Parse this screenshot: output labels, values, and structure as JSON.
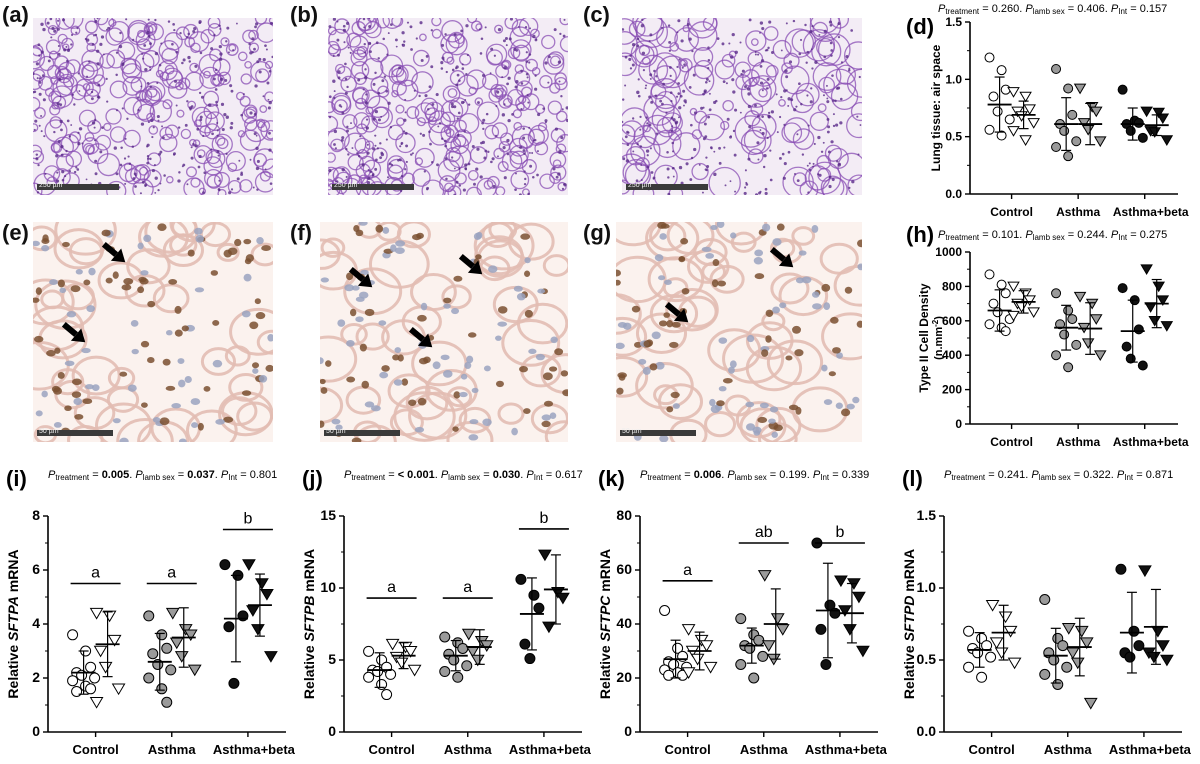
{
  "micrographs": {
    "he": [
      {
        "label": "(a)",
        "scale_text": "250 µm"
      },
      {
        "label": "(b)",
        "scale_text": "250 µm"
      },
      {
        "label": "(c)",
        "scale_text": "250 µm"
      }
    ],
    "ihc": [
      {
        "label": "(e)",
        "scale_text": "50 µm"
      },
      {
        "label": "(f)",
        "scale_text": "50 µm"
      },
      {
        "label": "(g)",
        "scale_text": "50 µm"
      }
    ]
  },
  "colors": {
    "he_stain": "#8a4fb4",
    "he_bg": "#f3ecf5",
    "ihc_bg": "#fbf2ee",
    "ihc_tissue": "#e2bcb3",
    "ihc_nuc": "#7a5030",
    "control": "#ffffff",
    "asthma": "#999999",
    "asthma_beta": "#111111"
  },
  "chart_data": [
    {
      "id": "d",
      "label": "(d)",
      "type": "scatter",
      "stats": {
        "a": "0.260",
        "b": "0.406",
        "c": "0.157",
        "bold": []
      },
      "ylabel": "Lung tissue: air space",
      "ylim": [
        0,
        1.5
      ],
      "yticks": [
        "0.0",
        "0.5",
        "1.0",
        "1.5"
      ],
      "categories": [
        "Control",
        "Asthma",
        "Asthma+beta"
      ],
      "groups": [
        {
          "cat": 0,
          "shape": "circle",
          "fill": "white",
          "mean": 0.78,
          "sd": 0.24,
          "points": [
            1.19,
            1.08,
            0.91,
            0.85,
            0.72,
            0.65,
            0.56,
            0.51
          ]
        },
        {
          "cat": 0,
          "shape": "triangle",
          "fill": "white",
          "mean": 0.69,
          "sd": 0.12,
          "points": [
            0.89,
            0.85,
            0.74,
            0.72,
            0.68,
            0.62,
            0.55,
            0.47
          ]
        },
        {
          "cat": 1,
          "shape": "circle",
          "fill": "grey",
          "mean": 0.61,
          "sd": 0.23,
          "points": [
            1.09,
            0.92,
            0.69,
            0.61,
            0.55,
            0.46,
            0.41,
            0.33
          ]
        },
        {
          "cat": 1,
          "shape": "triangle",
          "fill": "grey",
          "mean": 0.61,
          "sd": 0.18,
          "points": [
            0.92,
            0.76,
            0.72,
            0.62,
            0.56,
            0.46
          ]
        },
        {
          "cat": 2,
          "shape": "circle",
          "fill": "black",
          "mean": 0.61,
          "sd": 0.14,
          "points": [
            0.91,
            0.64,
            0.62,
            0.61,
            0.55,
            0.49
          ]
        },
        {
          "cat": 2,
          "shape": "triangle",
          "fill": "black",
          "mean": 0.6,
          "sd": 0.09,
          "points": [
            0.72,
            0.71,
            0.66,
            0.55,
            0.54,
            0.47
          ]
        }
      ],
      "sig": []
    },
    {
      "id": "h",
      "label": "(h)",
      "type": "scatter",
      "stats": {
        "a": "0.101",
        "b": "0.244",
        "c": "0.275",
        "bold": []
      },
      "ylabel": "Type II Cell Density",
      "ylabel2": "(n.mm-2)",
      "ylim": [
        0,
        1000
      ],
      "yticks": [
        "0",
        "200",
        "400",
        "600",
        "800",
        "1000"
      ],
      "categories": [
        "Control",
        "Asthma",
        "Asthma+beta"
      ],
      "groups": [
        {
          "cat": 0,
          "shape": "circle",
          "fill": "white",
          "mean": 660,
          "sd": 120,
          "points": [
            870,
            810,
            760,
            700,
            650,
            610,
            580,
            560,
            540
          ]
        },
        {
          "cat": 0,
          "shape": "triangle",
          "fill": "white",
          "mean": 710,
          "sd": 65,
          "points": [
            800,
            760,
            720,
            700,
            680,
            650,
            630
          ]
        },
        {
          "cat": 1,
          "shape": "circle",
          "fill": "grey",
          "mean": 560,
          "sd": 130,
          "points": [
            760,
            660,
            610,
            580,
            520,
            460,
            400,
            330
          ]
        },
        {
          "cat": 1,
          "shape": "triangle",
          "fill": "grey",
          "mean": 555,
          "sd": 150,
          "points": [
            740,
            700,
            610,
            560,
            470,
            400
          ]
        },
        {
          "cat": 2,
          "shape": "circle",
          "fill": "black",
          "mean": 540,
          "sd": 180,
          "points": [
            790,
            720,
            550,
            450,
            380,
            340
          ]
        },
        {
          "cat": 2,
          "shape": "triangle",
          "fill": "black",
          "mean": 700,
          "sd": 140,
          "points": [
            900,
            800,
            720,
            680,
            600,
            570
          ]
        }
      ],
      "sig": []
    },
    {
      "id": "i",
      "label": "(i)",
      "type": "scatter",
      "stats": {
        "a": "0.005",
        "b": "0.037",
        "c": "0.801",
        "bold": [
          "a",
          "b"
        ]
      },
      "ylabel": "Relative SFTPA mRNA",
      "ylim": [
        0,
        8
      ],
      "yticks": [
        "0",
        "2",
        "4",
        "6",
        "8"
      ],
      "categories": [
        "Control",
        "Asthma",
        "Asthma+beta"
      ],
      "groups": [
        {
          "cat": 0,
          "shape": "circle",
          "fill": "white",
          "mean": 2.2,
          "sd": 0.8,
          "points": [
            3.6,
            3.0,
            2.4,
            2.2,
            2.1,
            2.0,
            1.9,
            1.7,
            1.6,
            1.5
          ]
        },
        {
          "cat": 0,
          "shape": "triangle",
          "fill": "white",
          "mean": 3.25,
          "sd": 1.2,
          "points": [
            4.4,
            4.3,
            3.4,
            3.0,
            2.4,
            1.6,
            1.1
          ]
        },
        {
          "cat": 1,
          "shape": "circle",
          "fill": "grey",
          "mean": 2.6,
          "sd": 1.05,
          "points": [
            4.3,
            3.6,
            3.1,
            2.9,
            2.5,
            2.3,
            2.0,
            1.6,
            1.1
          ]
        },
        {
          "cat": 1,
          "shape": "triangle",
          "fill": "grey",
          "mean": 3.5,
          "sd": 1.1,
          "points": [
            4.4,
            3.8,
            3.6,
            3.3,
            2.8,
            2.3
          ]
        },
        {
          "cat": 2,
          "shape": "circle",
          "fill": "black",
          "mean": 4.2,
          "sd": 1.6,
          "points": [
            6.2,
            5.8,
            4.3,
            3.9,
            1.8
          ]
        },
        {
          "cat": 2,
          "shape": "triangle",
          "fill": "black",
          "mean": 4.7,
          "sd": 1.15,
          "points": [
            6.2,
            5.5,
            5.1,
            4.5,
            3.8,
            2.8
          ]
        }
      ],
      "sig": [
        {
          "from": 0,
          "to": 0,
          "y": 5.5,
          "text": "a"
        },
        {
          "from": 1,
          "to": 1,
          "y": 5.5,
          "text": "a"
        },
        {
          "from": 2,
          "to": 2,
          "y": 7.5,
          "text": "b"
        }
      ]
    },
    {
      "id": "j",
      "label": "(j)",
      "type": "scatter",
      "stats": {
        "a": "< 0.001",
        "b": "0.030",
        "c": "0.617",
        "bold": [
          "a",
          "b"
        ]
      },
      "ylabel": "Relative SFTPB mRNA",
      "ylim": [
        0,
        15
      ],
      "yticks": [
        "0",
        "5",
        "10",
        "15"
      ],
      "categories": [
        "Control",
        "Asthma",
        "Asthma+beta"
      ],
      "groups": [
        {
          "cat": 0,
          "shape": "circle",
          "fill": "white",
          "mean": 4.3,
          "sd": 1.2,
          "points": [
            5.6,
            5.0,
            4.5,
            4.3,
            4.2,
            4.0,
            3.8,
            3.3,
            2.6
          ]
        },
        {
          "cat": 0,
          "shape": "triangle",
          "fill": "white",
          "mean": 5.3,
          "sd": 0.9,
          "points": [
            6.1,
            5.9,
            5.6,
            5.2,
            4.8,
            4.3
          ]
        },
        {
          "cat": 1,
          "shape": "circle",
          "fill": "grey",
          "mean": 5.3,
          "sd": 1.05,
          "points": [
            6.6,
            6.2,
            5.8,
            5.4,
            5.0,
            4.6,
            4.2,
            3.8
          ]
        },
        {
          "cat": 1,
          "shape": "triangle",
          "fill": "grey",
          "mean": 5.9,
          "sd": 1.2,
          "points": [
            6.8,
            6.3,
            6.0,
            5.6,
            5.0
          ]
        },
        {
          "cat": 2,
          "shape": "circle",
          "fill": "black",
          "mean": 8.2,
          "sd": 2.5,
          "points": [
            10.6,
            9.5,
            8.6,
            6.1,
            5.1
          ]
        },
        {
          "cat": 2,
          "shape": "triangle",
          "fill": "black",
          "mean": 9.9,
          "sd": 2.4,
          "points": [
            12.3,
            9.7,
            9.3,
            7.3
          ]
        }
      ],
      "sig": [
        {
          "from": 0,
          "to": 0,
          "y": 9.3,
          "text": "a"
        },
        {
          "from": 1,
          "to": 1,
          "y": 9.3,
          "text": "a"
        },
        {
          "from": 2,
          "to": 2,
          "y": 14.1,
          "text": "b"
        }
      ]
    },
    {
      "id": "k",
      "label": "(k)",
      "type": "scatter",
      "stats": {
        "a": "0.006",
        "b": "0.199",
        "c": "0.339",
        "bold": [
          "a"
        ]
      },
      "ylabel": "Relative SFTPC mRNA",
      "ylim": [
        0,
        80
      ],
      "yticks": [
        "0",
        "20",
        "40",
        "60",
        "80"
      ],
      "categories": [
        "Control",
        "Asthma",
        "Asthma+beta"
      ],
      "groups": [
        {
          "cat": 0,
          "shape": "circle",
          "fill": "white",
          "mean": 27,
          "sd": 7,
          "points": [
            45,
            31,
            28,
            26,
            25,
            24,
            23,
            22,
            21,
            21
          ]
        },
        {
          "cat": 0,
          "shape": "triangle",
          "fill": "white",
          "mean": 30,
          "sd": 7,
          "points": [
            38,
            34,
            32,
            30,
            27,
            24,
            22
          ]
        },
        {
          "cat": 1,
          "shape": "circle",
          "fill": "grey",
          "mean": 32,
          "sd": 6.5,
          "points": [
            42,
            36,
            34,
            32,
            31,
            28,
            25,
            20
          ]
        },
        {
          "cat": 1,
          "shape": "triangle",
          "fill": "grey",
          "mean": 40,
          "sd": 13,
          "points": [
            58,
            42,
            38,
            32,
            27
          ]
        },
        {
          "cat": 2,
          "shape": "circle",
          "fill": "black",
          "mean": 45,
          "sd": 17.5,
          "points": [
            70,
            47,
            44,
            38,
            25
          ]
        },
        {
          "cat": 2,
          "shape": "triangle",
          "fill": "black",
          "mean": 44,
          "sd": 11,
          "points": [
            56,
            55,
            50,
            45,
            38,
            30
          ]
        }
      ],
      "sig": [
        {
          "from": 0,
          "to": 0,
          "y": 56,
          "text": "a"
        },
        {
          "from": 1,
          "to": 1,
          "y": 70,
          "text": "ab"
        },
        {
          "from": 2,
          "to": 2,
          "y": 70,
          "text": "b"
        }
      ]
    },
    {
      "id": "l",
      "label": "(l)",
      "type": "scatter",
      "stats": {
        "a": "0.241",
        "b": "0.322",
        "c": "0.871",
        "bold": []
      },
      "ylabel": "Relative SFTPD mRNA",
      "ylim": [
        0,
        1.5
      ],
      "yticks": [
        "0.0",
        "0.5",
        "1.0",
        "1.5"
      ],
      "categories": [
        "Control",
        "Asthma",
        "Asthma+beta"
      ],
      "groups": [
        {
          "cat": 0,
          "shape": "circle",
          "fill": "white",
          "mean": 0.57,
          "sd": 0.12,
          "points": [
            0.7,
            0.65,
            0.6,
            0.58,
            0.55,
            0.52,
            0.45,
            0.38
          ]
        },
        {
          "cat": 0,
          "shape": "triangle",
          "fill": "white",
          "mean": 0.69,
          "sd": 0.19,
          "points": [
            0.88,
            0.8,
            0.7,
            0.62,
            0.55,
            0.48
          ]
        },
        {
          "cat": 1,
          "shape": "circle",
          "fill": "grey",
          "mean": 0.53,
          "sd": 0.19,
          "points": [
            0.92,
            0.65,
            0.6,
            0.55,
            0.5,
            0.45,
            0.4,
            0.33
          ]
        },
        {
          "cat": 1,
          "shape": "triangle",
          "fill": "grey",
          "mean": 0.59,
          "sd": 0.2,
          "points": [
            0.72,
            0.7,
            0.62,
            0.55,
            0.48,
            0.2
          ]
        },
        {
          "cat": 2,
          "shape": "circle",
          "fill": "black",
          "mean": 0.69,
          "sd": 0.28,
          "points": [
            1.13,
            0.7,
            0.6,
            0.55,
            0.52
          ]
        },
        {
          "cat": 2,
          "shape": "triangle",
          "fill": "black",
          "mean": 0.73,
          "sd": 0.26,
          "points": [
            1.12,
            0.7,
            0.6,
            0.55,
            0.52,
            0.5
          ]
        }
      ],
      "sig": []
    }
  ]
}
